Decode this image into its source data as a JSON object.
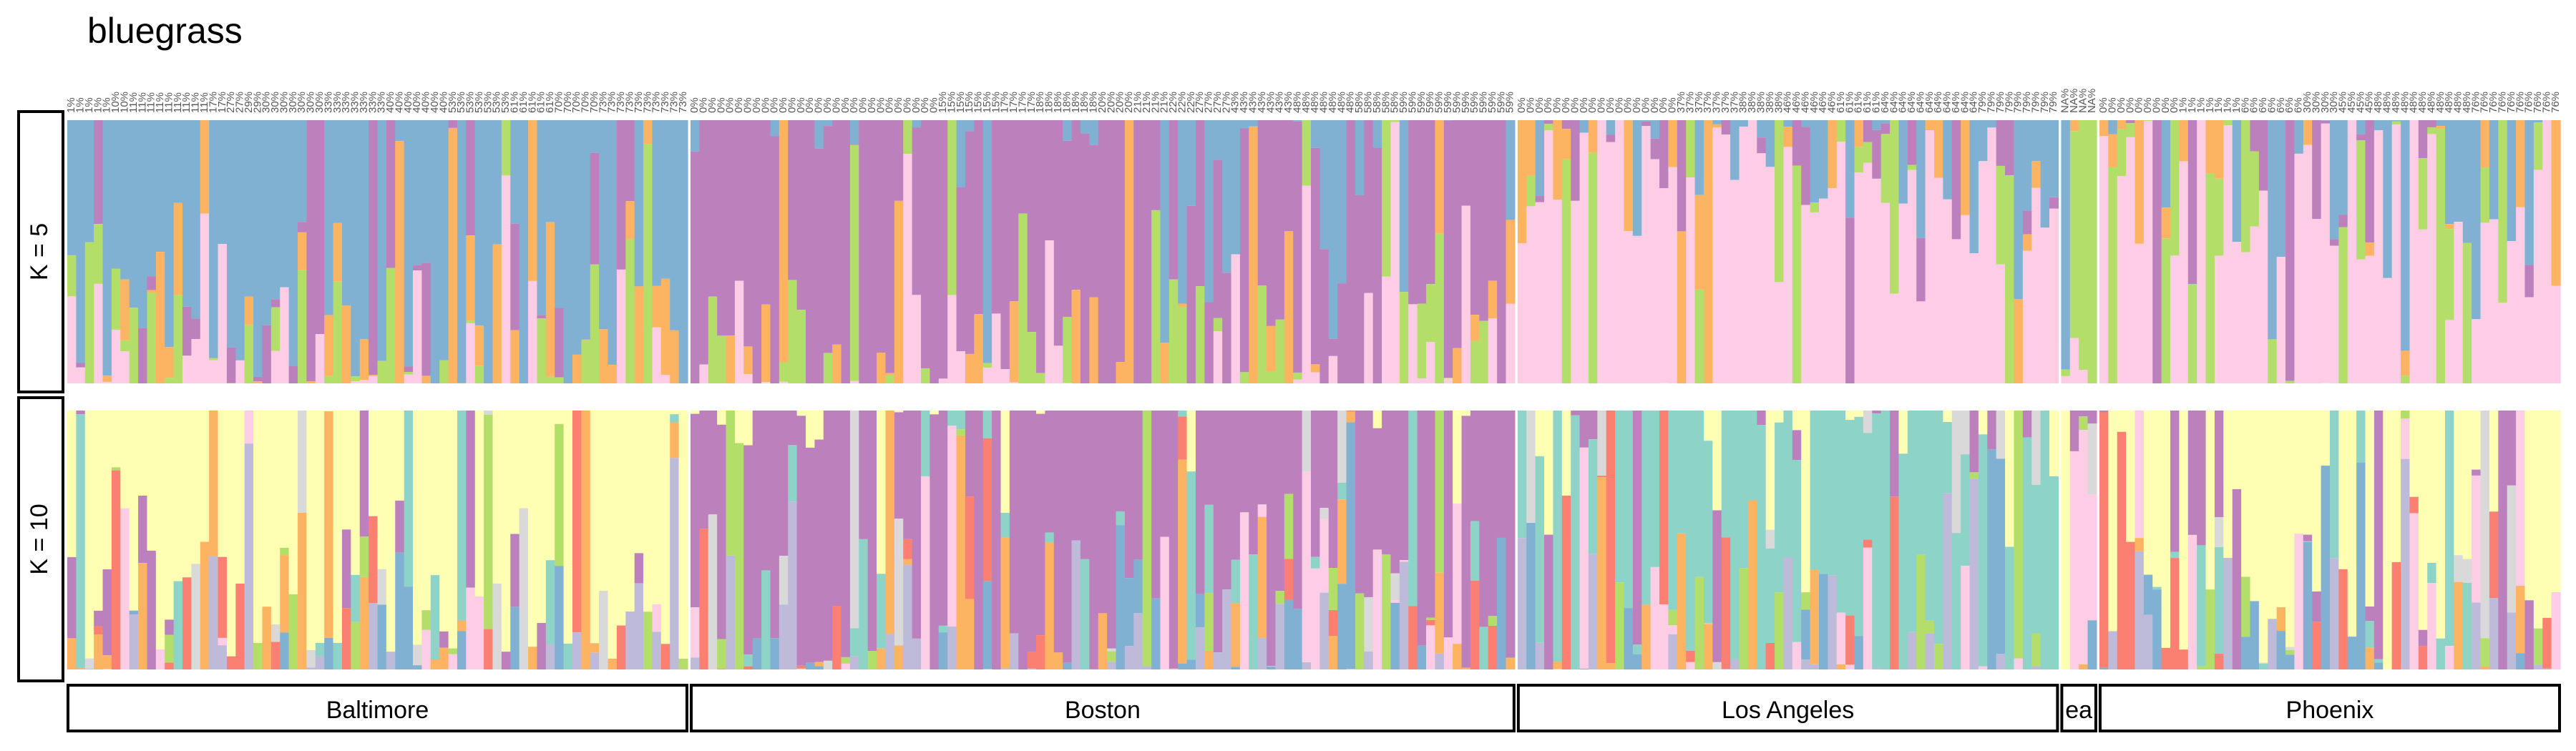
{
  "chart_data": {
    "type": "bar",
    "subtype": "stacked-structure-plot",
    "title": "bluegrass",
    "n_individuals": 280,
    "populations": [
      {
        "name": "Baltimore",
        "n": 70
      },
      {
        "name": "Boston",
        "n": 93
      },
      {
        "name": "Los Angeles",
        "n": 61
      },
      {
        "name": "Seattle",
        "n": 4,
        "display_label": "ea"
      },
      {
        "name": "Phoenix",
        "n": 52
      }
    ],
    "x_tick_labels": {
      "Baltimore": [
        "1%",
        "1%",
        "1%",
        "1%",
        "1%",
        "10%",
        "10%",
        "11%",
        "11%",
        "11%",
        "11%",
        "11%",
        "11%",
        "11%",
        "11%",
        "11%",
        "17%",
        "17%",
        "27%",
        "27%",
        "29%",
        "29%",
        "30%",
        "30%",
        "30%",
        "30%",
        "30%",
        "30%",
        "30%",
        "33%",
        "33%",
        "33%",
        "33%",
        "33%",
        "33%",
        "33%",
        "40%",
        "40%",
        "40%",
        "40%",
        "40%",
        "40%",
        "40%",
        "53%",
        "53%",
        "53%",
        "53%",
        "53%",
        "53%",
        "53%",
        "61%",
        "61%",
        "61%",
        "61%",
        "61%",
        "70%",
        "70%",
        "70%",
        "70%",
        "70%",
        "73%",
        "73%",
        "73%",
        "73%",
        "73%",
        "73%",
        "73%",
        "73%",
        "73%",
        "73%"
      ],
      "Boston": [
        "0%",
        "0%",
        "0%",
        "0%",
        "0%",
        "0%",
        "0%",
        "0%",
        "0%",
        "0%",
        "0%",
        "0%",
        "0%",
        "0%",
        "0%",
        "0%",
        "0%",
        "0%",
        "0%",
        "0%",
        "0%",
        "0%",
        "0%",
        "0%",
        "0%",
        "0%",
        "0%",
        "0%",
        "15%",
        "15%",
        "15%",
        "15%",
        "15%",
        "15%",
        "15%",
        "17%",
        "17%",
        "17%",
        "17%",
        "18%",
        "18%",
        "18%",
        "18%",
        "18%",
        "18%",
        "18%",
        "20%",
        "20%",
        "20%",
        "20%",
        "21%",
        "21%",
        "21%",
        "21%",
        "22%",
        "22%",
        "22%",
        "27%",
        "27%",
        "27%",
        "27%",
        "43%",
        "43%",
        "43%",
        "43%",
        "43%",
        "43%",
        "43%",
        "48%",
        "48%",
        "48%",
        "48%",
        "48%",
        "48%",
        "48%",
        "58%",
        "58%",
        "58%",
        "58%",
        "58%",
        "59%",
        "59%",
        "59%",
        "59%",
        "59%",
        "59%",
        "59%",
        "59%",
        "59%",
        "59%",
        "59%",
        "59%",
        "59%"
      ],
      "Los Angeles": [
        "0%",
        "0%",
        "0%",
        "0%",
        "0%",
        "0%",
        "0%",
        "0%",
        "0%",
        "0%",
        "0%",
        "0%",
        "0%",
        "0%",
        "0%",
        "0%",
        "0%",
        "0%",
        "37%",
        "37%",
        "37%",
        "37%",
        "37%",
        "37%",
        "37%",
        "38%",
        "38%",
        "38%",
        "38%",
        "38%",
        "46%",
        "46%",
        "46%",
        "46%",
        "46%",
        "46%",
        "61%",
        "61%",
        "61%",
        "61%",
        "61%",
        "64%",
        "64%",
        "64%",
        "64%",
        "64%",
        "64%",
        "64%",
        "64%",
        "64%",
        "64%",
        "64%",
        "79%",
        "79%",
        "79%",
        "79%",
        "79%",
        "79%",
        "79%",
        "79%",
        "79%"
      ],
      "Seattle": [
        "NA%",
        "NA%",
        "NA%",
        "NA%"
      ],
      "Phoenix": [
        "0%",
        "0%",
        "0%",
        "0%",
        "0%",
        "0%",
        "0%",
        "0%",
        "0%",
        "1%",
        "1%",
        "1%",
        "1%",
        "1%",
        "1%",
        "1%",
        "6%",
        "6%",
        "6%",
        "6%",
        "6%",
        "6%",
        "6%",
        "30%",
        "30%",
        "30%",
        "30%",
        "45%",
        "45%",
        "45%",
        "45%",
        "48%",
        "48%",
        "48%",
        "48%",
        "48%",
        "48%",
        "48%",
        "48%",
        "48%",
        "48%",
        "48%",
        "76%",
        "76%",
        "76%",
        "76%",
        "76%",
        "76%",
        "76%",
        "76%",
        "76%",
        "76%"
      ]
    },
    "panels": [
      {
        "label": "K = 5",
        "k": 5,
        "cluster_colors": [
          "#80B1D3",
          "#BC80BD",
          "#FDB462",
          "#B3DE69",
          "#FCCDE5"
        ],
        "dominant_cluster_by_population": {
          "Baltimore": 0,
          "Boston": 1,
          "Los Angeles": 4,
          "Seattle": 3,
          "Phoenix": 4
        }
      },
      {
        "label": "K = 10",
        "k": 10,
        "cluster_colors": [
          "#FFFFB3",
          "#BC80BD",
          "#D9D9D9",
          "#8DD3C7",
          "#B3DE69",
          "#FB8072",
          "#FCCDE5",
          "#FDB462",
          "#80B1D3",
          "#BEBADA"
        ],
        "dominant_cluster_by_population": {
          "Baltimore": 0,
          "Boston": 1,
          "Los Angeles": 3,
          "Seattle": 6,
          "Phoenix": 0
        }
      }
    ],
    "ylim": [
      0,
      1
    ],
    "legend": "none",
    "grid": false
  }
}
